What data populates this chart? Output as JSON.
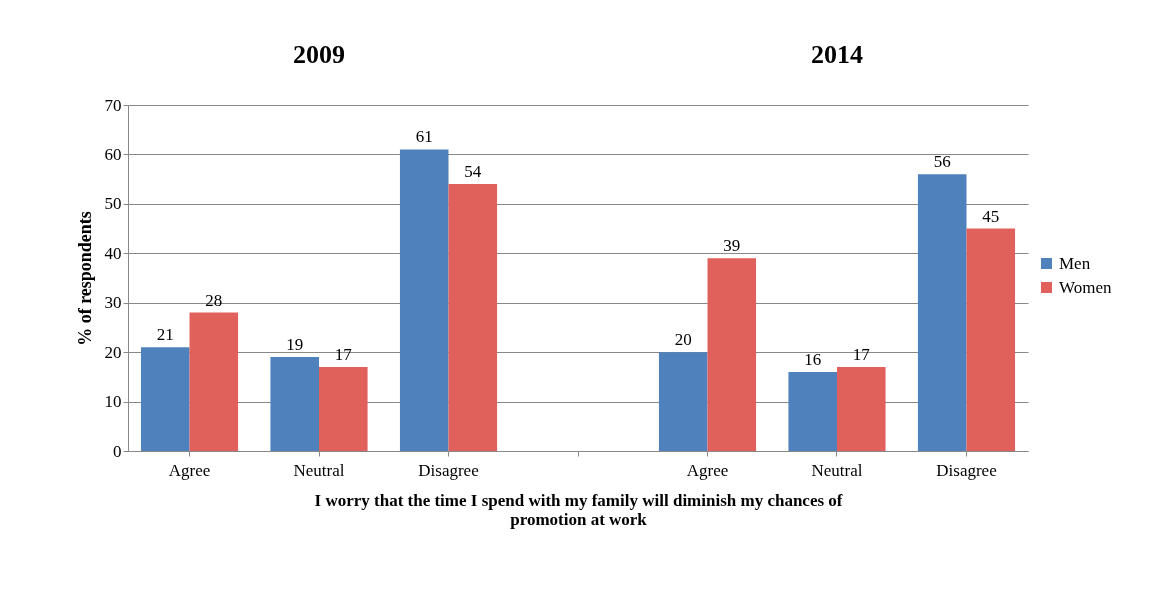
{
  "chart_data": {
    "type": "bar",
    "xlabel": "I worry that the time I spend with my family will diminish my chances of promotion at work",
    "ylabel": "% of respondents",
    "annotations": [
      "2009",
      "2014"
    ],
    "categories": [
      "Agree",
      "Neutral",
      "Disagree",
      null,
      "Agree",
      "Neutral",
      "Disagree"
    ],
    "series": [
      {
        "name": "Men",
        "color": "#4f81bd",
        "values": [
          21,
          19,
          61,
          null,
          20,
          16,
          56
        ]
      },
      {
        "name": "Women",
        "color": "#e0605c",
        "values": [
          28,
          17,
          54,
          null,
          39,
          17,
          45
        ]
      }
    ],
    "ylim": [
      0,
      70
    ],
    "yticks": [
      0,
      10,
      20,
      30,
      40,
      50,
      60,
      70
    ],
    "grid": "y",
    "legend": "right",
    "data_labels": true
  }
}
